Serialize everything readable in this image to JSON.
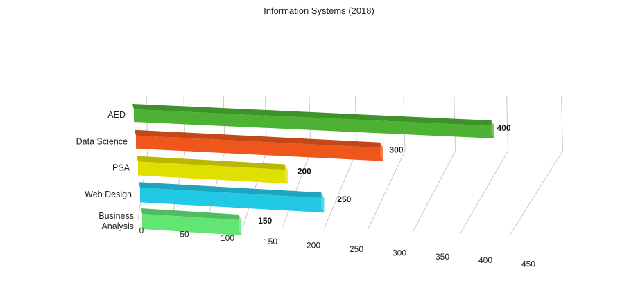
{
  "chart_data": {
    "type": "bar",
    "orientation": "horizontal",
    "style": "3d",
    "title": "Information Systems (2018)",
    "xlabel": "",
    "ylabel": "",
    "categories": [
      "AED",
      "Data Science",
      "PSA",
      "Web Design",
      "Business Analysis"
    ],
    "values": [
      400,
      300,
      200,
      250,
      150
    ],
    "data_labels": [
      "400",
      "300",
      "200",
      "250",
      "150"
    ],
    "colors": [
      "#4db133",
      "#ee561c",
      "#e0e000",
      "#22c9e5",
      "#63e573"
    ],
    "xlim": [
      0,
      450
    ],
    "ticks": [
      0,
      50,
      100,
      150,
      200,
      250,
      300,
      350,
      400,
      450
    ],
    "tick_labels": [
      "0",
      "50",
      "100",
      "150",
      "200",
      "250",
      "300",
      "350",
      "400",
      "450"
    ],
    "grid": true,
    "legend": "none"
  }
}
